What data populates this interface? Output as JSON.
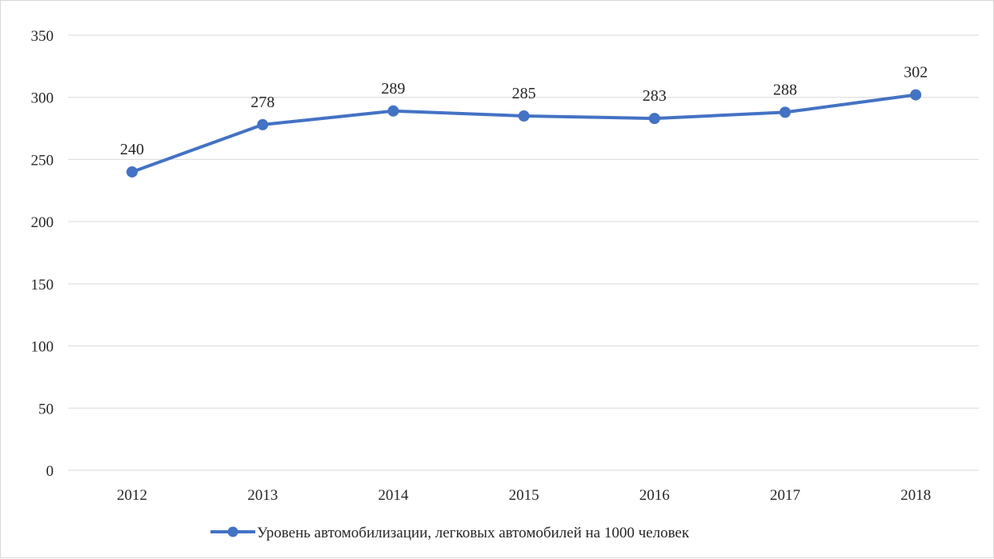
{
  "chart_data": {
    "type": "line",
    "title": "",
    "xlabel": "",
    "ylabel": "",
    "categories": [
      "2012",
      "2013",
      "2014",
      "2015",
      "2016",
      "2017",
      "2018"
    ],
    "series": [
      {
        "name": "Уровень автомобилизации, легковых автомобилей на 1000 человек",
        "values": [
          240,
          278,
          289,
          285,
          283,
          288,
          302
        ],
        "color": "#4472c4",
        "marker": "circle"
      }
    ],
    "data_labels": [
      "240",
      "278",
      "289",
      "285",
      "283",
      "288",
      "302"
    ],
    "ylim": [
      0,
      350
    ],
    "yticks": [
      0,
      50,
      100,
      150,
      200,
      250,
      300,
      350
    ],
    "ytick_labels": [
      "0",
      "50",
      "100",
      "150",
      "200",
      "250",
      "300",
      "350"
    ],
    "grid": true,
    "gridline_color": "#d9d9d9",
    "legend": {
      "position": "bottom",
      "label": "Уровень автомобилизации, легковых автомобилей на 1000 человек"
    }
  }
}
